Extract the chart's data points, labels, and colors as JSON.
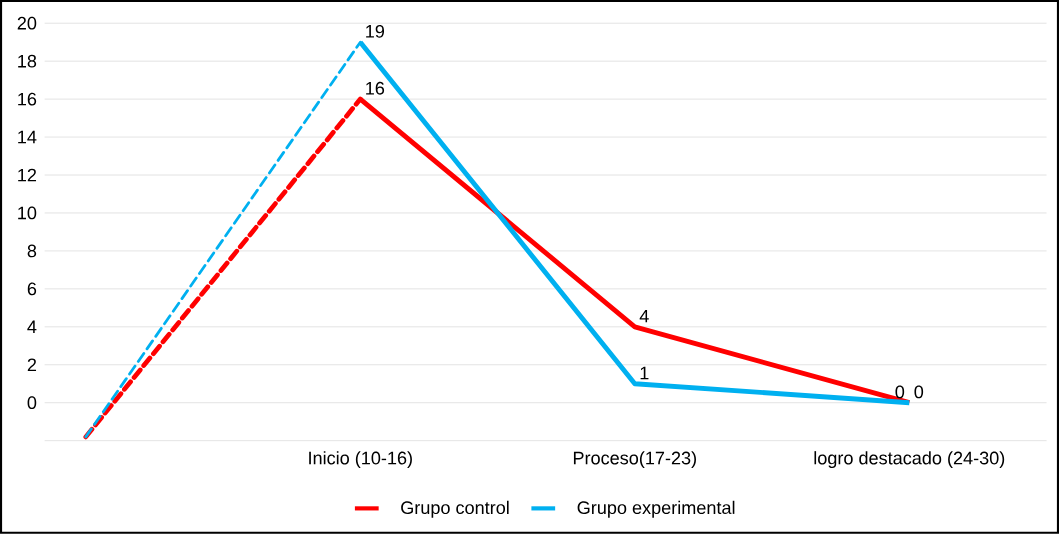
{
  "chart_data": {
    "type": "line",
    "categories": [
      null,
      "Inicio (10-16)",
      "Proceso(17-23)",
      "logro destacado (24-30)"
    ],
    "series": [
      {
        "color": "#ff0000",
        "values": [
          -1.8,
          16,
          null,
          null
        ],
        "line_style": "dashed"
      },
      {
        "color": "#00b0f0",
        "values": [
          -1.8,
          19,
          null,
          null
        ],
        "line_style": "dashed"
      },
      {
        "name": "Grupo control",
        "color": "#ff0000",
        "values": [
          null,
          16,
          4,
          0
        ],
        "value_labels": [
          null,
          "16",
          "4",
          "0"
        ]
      },
      {
        "name": "Grupo experimental",
        "color": "#00b0f0",
        "values": [
          null,
          19,
          1,
          0
        ],
        "value_labels": [
          null,
          "19",
          "1",
          "0"
        ]
      }
    ],
    "ylim": [
      -2,
      20
    ],
    "yticks": [
      {
        "value": -2,
        "label": null
      },
      0,
      2,
      4,
      6,
      8,
      10,
      12,
      14,
      16,
      18,
      20
    ],
    "grid": "y",
    "legend": "bottom",
    "marker": "none",
    "line_style": "solid"
  }
}
